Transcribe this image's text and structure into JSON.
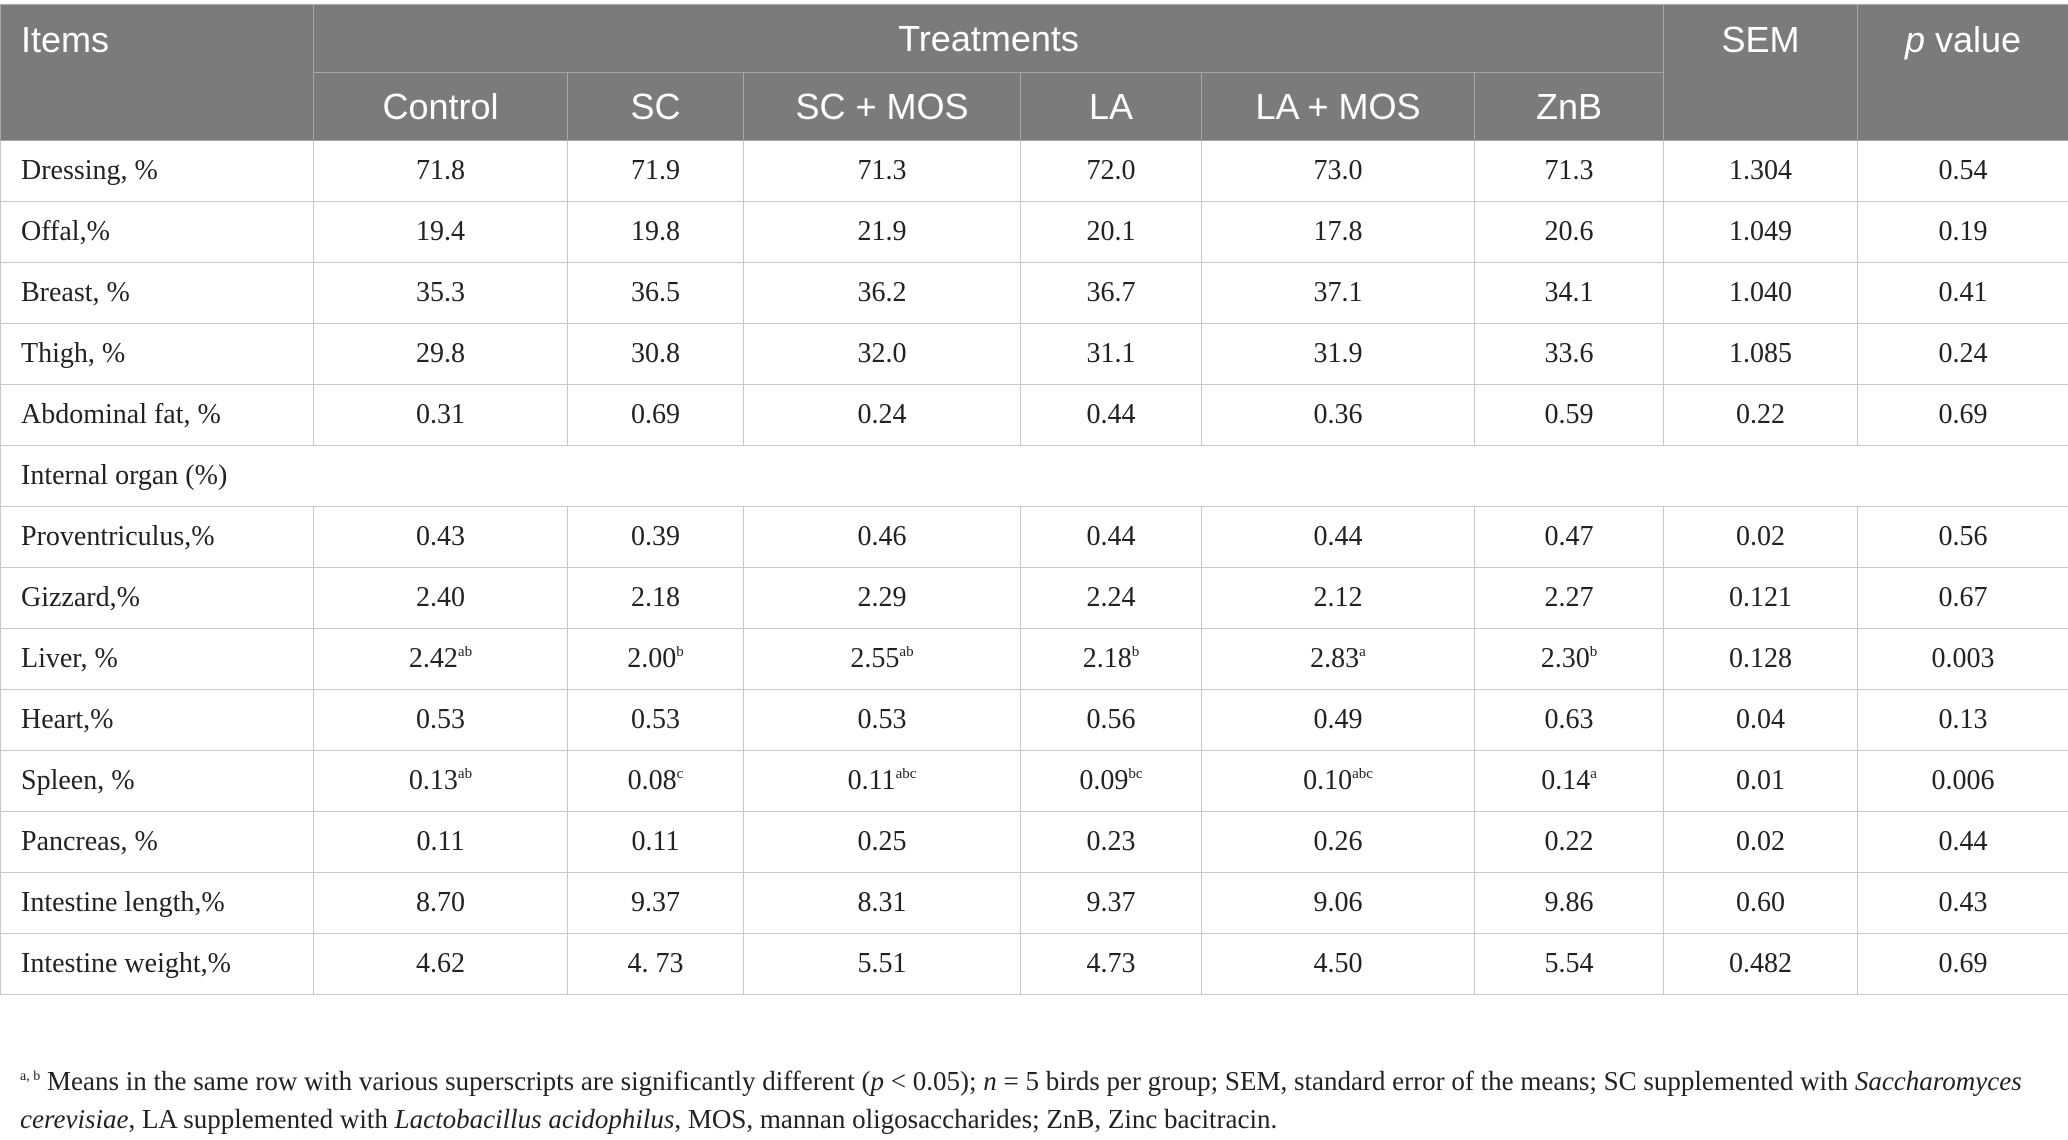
{
  "header": {
    "items": "Items",
    "treatments": "Treatments",
    "sem": "SEM",
    "p_italic": "p",
    "p_rest": " value",
    "columns": [
      "Control",
      "SC",
      "SC + MOS",
      "LA",
      "LA + MOS",
      "ZnB"
    ]
  },
  "rows": [
    {
      "label": "Dressing, %",
      "values": [
        [
          "71.8",
          ""
        ],
        [
          "71.9",
          ""
        ],
        [
          "71.3",
          ""
        ],
        [
          "72.0",
          ""
        ],
        [
          "73.0",
          ""
        ],
        [
          "71.3",
          ""
        ]
      ],
      "sem": "1.304",
      "p": "0.54"
    },
    {
      "label": "Offal,%",
      "values": [
        [
          "19.4",
          ""
        ],
        [
          "19.8",
          ""
        ],
        [
          "21.9",
          ""
        ],
        [
          "20.1",
          ""
        ],
        [
          "17.8",
          ""
        ],
        [
          "20.6",
          ""
        ]
      ],
      "sem": "1.049",
      "p": "0.19"
    },
    {
      "label": "Breast, %",
      "values": [
        [
          "35.3",
          ""
        ],
        [
          "36.5",
          ""
        ],
        [
          "36.2",
          ""
        ],
        [
          "36.7",
          ""
        ],
        [
          "37.1",
          ""
        ],
        [
          "34.1",
          ""
        ]
      ],
      "sem": "1.040",
      "p": "0.41"
    },
    {
      "label": "Thigh, %",
      "values": [
        [
          "29.8",
          ""
        ],
        [
          "30.8",
          ""
        ],
        [
          "32.0",
          ""
        ],
        [
          "31.1",
          ""
        ],
        [
          "31.9",
          ""
        ],
        [
          "33.6",
          ""
        ]
      ],
      "sem": "1.085",
      "p": "0.24"
    },
    {
      "label": "Abdominal fat, %",
      "values": [
        [
          "0.31",
          ""
        ],
        [
          "0.69",
          ""
        ],
        [
          "0.24",
          ""
        ],
        [
          "0.44",
          ""
        ],
        [
          "0.36",
          ""
        ],
        [
          "0.59",
          ""
        ]
      ],
      "sem": "0.22",
      "p": "0.69"
    },
    {
      "group": "Internal organ (%)"
    },
    {
      "label": "Proventriculus,%",
      "values": [
        [
          "0.43",
          ""
        ],
        [
          "0.39",
          ""
        ],
        [
          "0.46",
          ""
        ],
        [
          "0.44",
          ""
        ],
        [
          "0.44",
          ""
        ],
        [
          "0.47",
          ""
        ]
      ],
      "sem": "0.02",
      "p": "0.56"
    },
    {
      "label": "Gizzard,%",
      "values": [
        [
          "2.40",
          ""
        ],
        [
          "2.18",
          ""
        ],
        [
          "2.29",
          ""
        ],
        [
          "2.24",
          ""
        ],
        [
          "2.12",
          ""
        ],
        [
          "2.27",
          ""
        ]
      ],
      "sem": "0.121",
      "p": "0.67"
    },
    {
      "label": "Liver, %",
      "values": [
        [
          "2.42",
          "ab"
        ],
        [
          "2.00",
          "b"
        ],
        [
          "2.55",
          "ab"
        ],
        [
          "2.18",
          "b"
        ],
        [
          "2.83",
          "a"
        ],
        [
          "2.30",
          "b"
        ]
      ],
      "sem": "0.128",
      "p": "0.003"
    },
    {
      "label": "Heart,%",
      "values": [
        [
          "0.53",
          ""
        ],
        [
          "0.53",
          ""
        ],
        [
          "0.53",
          ""
        ],
        [
          "0.56",
          ""
        ],
        [
          "0.49",
          ""
        ],
        [
          "0.63",
          ""
        ]
      ],
      "sem": "0.04",
      "p": "0.13"
    },
    {
      "label": "Spleen, %",
      "values": [
        [
          "0.13",
          "ab"
        ],
        [
          "0.08",
          "c"
        ],
        [
          "0.11",
          "abc"
        ],
        [
          "0.09",
          "bc"
        ],
        [
          "0.10",
          "abc"
        ],
        [
          "0.14",
          "a"
        ]
      ],
      "sem": "0.01",
      "p": "0.006"
    },
    {
      "label": "Pancreas, %",
      "values": [
        [
          "0.11",
          ""
        ],
        [
          "0.11",
          ""
        ],
        [
          "0.25",
          ""
        ],
        [
          "0.23",
          ""
        ],
        [
          "0.26",
          ""
        ],
        [
          "0.22",
          ""
        ]
      ],
      "sem": "0.02",
      "p": "0.44"
    },
    {
      "label": "Intestine length,%",
      "values": [
        [
          "8.70",
          ""
        ],
        [
          "9.37",
          ""
        ],
        [
          "8.31",
          ""
        ],
        [
          "9.37",
          ""
        ],
        [
          "9.06",
          ""
        ],
        [
          "9.86",
          ""
        ]
      ],
      "sem": "0.60",
      "p": "0.43"
    },
    {
      "label": "Intestine weight,%",
      "values": [
        [
          "4.62",
          ""
        ],
        [
          "4. 73",
          ""
        ],
        [
          "5.51",
          ""
        ],
        [
          "4.73",
          ""
        ],
        [
          "4.50",
          ""
        ],
        [
          "5.54",
          ""
        ]
      ],
      "sem": "0.482",
      "p": "0.69"
    }
  ],
  "footnote": {
    "sup": "a, b",
    "t1": " Means in the same row with various superscripts are significantly different (",
    "i1": "p",
    "t2": " < 0.05); ",
    "i2": "n",
    "t3": " = 5 birds per group; SEM, standard error of the means; SC supplemented with ",
    "i3": "Saccharomyces cerevisiae",
    "t4": ", LA supplemented with ",
    "i4": "Lactobacillus acidophilus",
    "t5": ", MOS, mannan oligosaccharides; ZnB, Zinc bacitracin."
  }
}
